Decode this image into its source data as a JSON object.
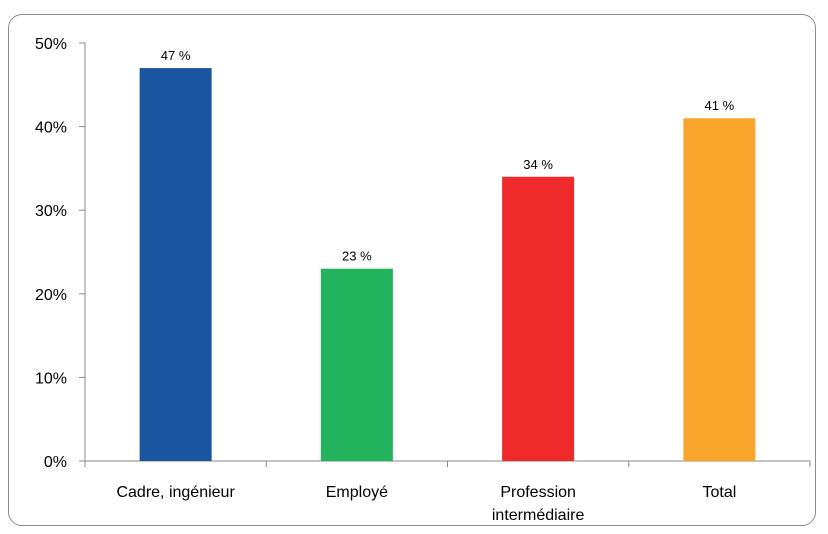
{
  "chart_data": {
    "type": "bar",
    "categories": [
      [
        "Cadre, ingénieur"
      ],
      [
        "Employé"
      ],
      [
        "Profession",
        "intermédiaire"
      ],
      [
        "Total"
      ]
    ],
    "values": [
      47,
      23,
      34,
      41
    ],
    "data_labels": [
      "47 %",
      "23 %",
      "34 %",
      "41 %"
    ],
    "colors": [
      "#1a56a0",
      "#22b35c",
      "#ee2a2a",
      "#f9a42b"
    ],
    "ylim": [
      0,
      50
    ],
    "yticks": [
      {
        "value": 0,
        "label": "0%"
      },
      {
        "value": 10,
        "label": "10%"
      },
      {
        "value": 20,
        "label": "20%"
      },
      {
        "value": 30,
        "label": "30%"
      },
      {
        "value": 40,
        "label": "40%"
      },
      {
        "value": 50,
        "label": "50%"
      }
    ],
    "grid": false,
    "legend": "none",
    "title": "",
    "xlabel": "",
    "ylabel": ""
  }
}
